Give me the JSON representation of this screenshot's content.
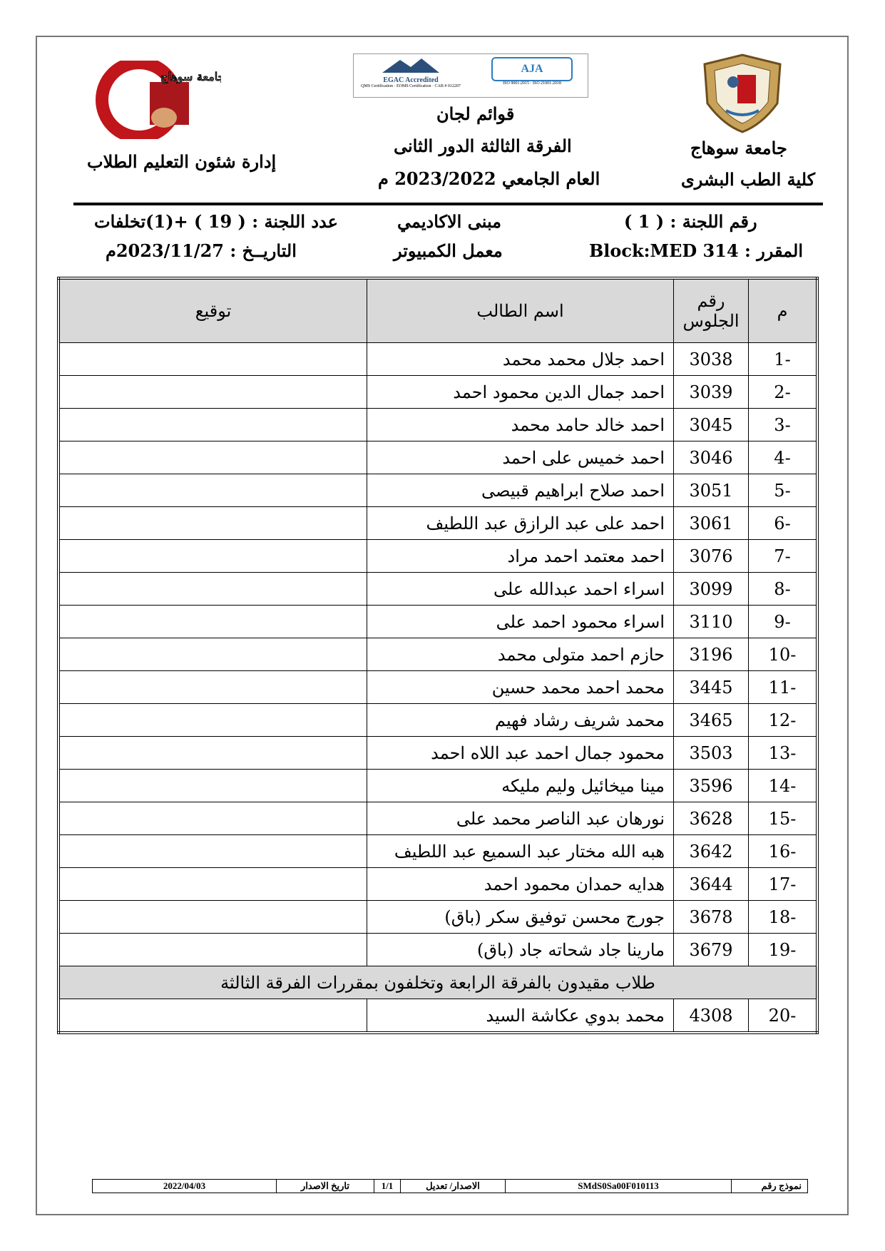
{
  "header": {
    "right": {
      "university": "جامعة سوهاج",
      "faculty": "كلية الطب البشرى"
    },
    "center": {
      "title": "قوائم لجان",
      "year_round": "الفرقة الثالثة الدور الثانى",
      "academic_year": "العام الجامعي 2023/2022 م"
    },
    "left": {
      "department": "إدارة شئون التعليم الطلاب"
    },
    "certifications": {
      "egac": "EGAC Accredited",
      "egac_lines": "QMS Certification · EOMS Certification · CAB # 012207",
      "aja": "AJA",
      "aja_lines": "ISO 9001:2015 · ISO 21001:2018"
    },
    "logos": {
      "right": "Sohag University seal",
      "left": "كلية الطب جامعة سوهاج"
    }
  },
  "info": {
    "committee_no": "رقم اللجنة : ( 1 )",
    "course": "المقرر :  Block:MED 314",
    "building": "مبنى الاكاديمي",
    "lab": "معمل الكمبيوتر",
    "committee_count": "عدد اللجنة : ( 19 ) +(1)تخلفات",
    "date": "التاريــخ :   2023/11/27م"
  },
  "table": {
    "headers": {
      "m": "م",
      "seat": "رقم الجلوس",
      "name": "اسم الطالب",
      "signature": "توقيع"
    },
    "rows": [
      {
        "m": "-1",
        "seat": "3038",
        "name": "احمد جلال محمد محمد"
      },
      {
        "m": "-2",
        "seat": "3039",
        "name": "احمد جمال الدين محمود احمد"
      },
      {
        "m": "-3",
        "seat": "3045",
        "name": "احمد خالد حامد محمد"
      },
      {
        "m": "-4",
        "seat": "3046",
        "name": "احمد خميس على احمد"
      },
      {
        "m": "-5",
        "seat": "3051",
        "name": "احمد صلاح ابراهيم قبيصى"
      },
      {
        "m": "-6",
        "seat": "3061",
        "name": "احمد على عبد الرازق عبد اللطيف"
      },
      {
        "m": "-7",
        "seat": "3076",
        "name": "احمد معتمد احمد مراد"
      },
      {
        "m": "-8",
        "seat": "3099",
        "name": "اسراء احمد عبدالله على"
      },
      {
        "m": "-9",
        "seat": "3110",
        "name": "اسراء محمود احمد على"
      },
      {
        "m": "-10",
        "seat": "3196",
        "name": "حازم احمد متولى محمد"
      },
      {
        "m": "-11",
        "seat": "3445",
        "name": "محمد احمد محمد حسين"
      },
      {
        "m": "-12",
        "seat": "3465",
        "name": "محمد شريف رشاد فهيم"
      },
      {
        "m": "-13",
        "seat": "3503",
        "name": "محمود جمال احمد عبد اللاه احمد"
      },
      {
        "m": "-14",
        "seat": "3596",
        "name": "مينا ميخائيل وليم مليكه"
      },
      {
        "m": "-15",
        "seat": "3628",
        "name": "نورهان عبد الناصر محمد على"
      },
      {
        "m": "-16",
        "seat": "3642",
        "name": "هبه الله مختار عبد السميع عبد اللطيف"
      },
      {
        "m": "-17",
        "seat": "3644",
        "name": "هدايه حمدان محمود احمد"
      },
      {
        "m": "-18",
        "seat": "3678",
        "name": "جورج محسن توفيق سكر (باق)"
      },
      {
        "m": "-19",
        "seat": "3679",
        "name": "مارينا جاد شحاته جاد (باق)"
      }
    ],
    "banner": "طلاب مقيدون بالفرقة الرابعة وتخلفون بمقررات الفرقة الثالثة",
    "extra_rows": [
      {
        "m": "-20",
        "seat": "4308",
        "name": "محمد بدوي عكاشة السيد"
      }
    ]
  },
  "footer": {
    "form_label": "نموذج رقم",
    "form_no": "SMdS0Sa00F010113",
    "version_label": "الاصدار/ تعديل",
    "version": "1/1",
    "issue_label": "تاريخ الاصدار",
    "issue_date": "2022/04/03"
  },
  "colors": {
    "logo_red": "#c0151b",
    "seal_gold": "#b8914a",
    "header_fill": "#d9d9d9"
  }
}
